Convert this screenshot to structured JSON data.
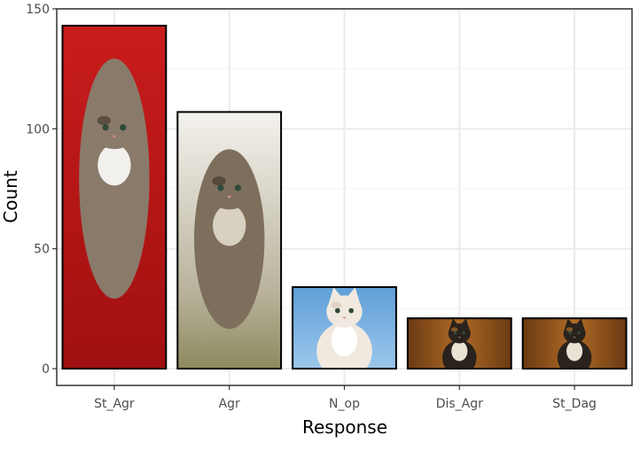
{
  "chart_data": {
    "type": "bar",
    "categories": [
      "St_Agr",
      "Agr",
      "N_op",
      "Dis_Agr",
      "St_Dag"
    ],
    "values": [
      143,
      107,
      34,
      21,
      21
    ],
    "xlabel": "Response",
    "ylabel": "Count",
    "ylim": [
      -7,
      150
    ],
    "yticks": [
      0,
      50,
      100,
      150
    ],
    "grid": true,
    "bar_fill": "kitten photos",
    "colors": {
      "panel_background": "#ffffff",
      "grid_major": "#ebebeb",
      "grid_minor": "#f5f5f5",
      "panel_border": "#333333",
      "axis_text": "#4d4d4d",
      "bar_outline": "#000000"
    }
  }
}
